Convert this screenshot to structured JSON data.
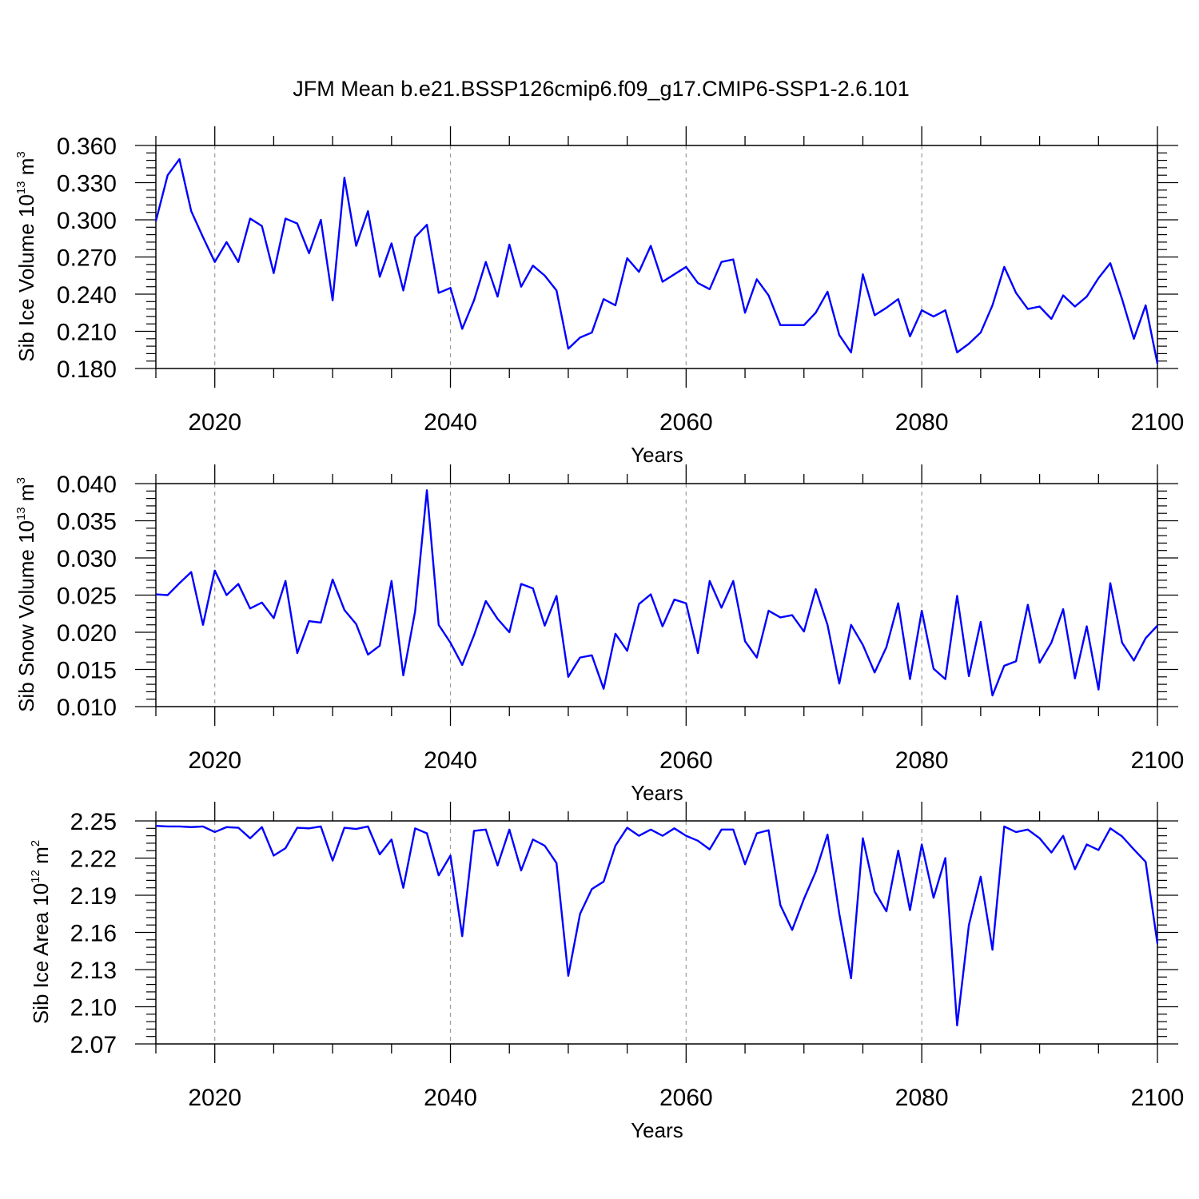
{
  "figure_title": "JFM Mean b.e21.BSSP126cmip6.f09_g17.CMIP6-SSP1-2.6.101",
  "colors": {
    "line": "#0000ff",
    "axis": "#000000",
    "grid": "#999999",
    "background": "#ffffff"
  },
  "chart_data": [
    {
      "type": "line",
      "name": "sib-ice-volume",
      "ylabel_main": "Sib Ice Volume 10",
      "ylabel_exp": "13",
      "ylabel_unit": " m",
      "ylabel_unit_exp": "3",
      "xlabel": "Years",
      "xlim": [
        2015,
        2100
      ],
      "ylim": [
        0.18,
        0.36
      ],
      "yticks": [
        0.18,
        0.21,
        0.24,
        0.27,
        0.3,
        0.33,
        0.36
      ],
      "ytick_labels": [
        "0.180",
        "0.210",
        "0.240",
        "0.270",
        "0.300",
        "0.330",
        "0.360"
      ],
      "xticks": [
        2020,
        2040,
        2060,
        2080,
        2100
      ],
      "xtick_labels": [
        "2020",
        "2040",
        "2060",
        "2080",
        "2100"
      ],
      "grid": "vertical-dashed",
      "x_start": 2015,
      "values": [
        0.299,
        0.336,
        0.349,
        0.307,
        0.286,
        0.266,
        0.282,
        0.266,
        0.301,
        0.295,
        0.257,
        0.301,
        0.297,
        0.273,
        0.3,
        0.235,
        0.334,
        0.279,
        0.307,
        0.254,
        0.281,
        0.243,
        0.286,
        0.296,
        0.241,
        0.245,
        0.212,
        0.235,
        0.266,
        0.238,
        0.28,
        0.246,
        0.263,
        0.255,
        0.243,
        0.196,
        0.205,
        0.209,
        0.236,
        0.231,
        0.269,
        0.258,
        0.279,
        0.25,
        0.256,
        0.262,
        0.249,
        0.244,
        0.266,
        0.268,
        0.225,
        0.252,
        0.239,
        0.215,
        0.215,
        0.215,
        0.225,
        0.242,
        0.207,
        0.193,
        0.256,
        0.223,
        0.229,
        0.236,
        0.206,
        0.227,
        0.222,
        0.227,
        0.193,
        0.2,
        0.209,
        0.231,
        0.262,
        0.241,
        0.228,
        0.23,
        0.22,
        0.239,
        0.23,
        0.238,
        0.253,
        0.265,
        0.236,
        0.204,
        0.231,
        0.184
      ]
    },
    {
      "type": "line",
      "name": "sib-snow-volume",
      "ylabel_main": "Sib Snow Volume 10",
      "ylabel_exp": "13",
      "ylabel_unit": " m",
      "ylabel_unit_exp": "3",
      "xlabel": "Years",
      "xlim": [
        2015,
        2100
      ],
      "ylim": [
        0.01,
        0.04
      ],
      "yticks": [
        0.01,
        0.015,
        0.02,
        0.025,
        0.03,
        0.035,
        0.04
      ],
      "ytick_labels": [
        "0.010",
        "0.015",
        "0.020",
        "0.025",
        "0.030",
        "0.035",
        "0.040"
      ],
      "xticks": [
        2020,
        2040,
        2060,
        2080,
        2100
      ],
      "xtick_labels": [
        "2020",
        "2040",
        "2060",
        "2080",
        "2100"
      ],
      "grid": "vertical-dashed",
      "x_start": 2015,
      "values": [
        0.0251,
        0.025,
        0.0266,
        0.0281,
        0.021,
        0.0283,
        0.025,
        0.0265,
        0.0232,
        0.024,
        0.0219,
        0.0269,
        0.0172,
        0.0215,
        0.0213,
        0.0271,
        0.023,
        0.0211,
        0.017,
        0.0182,
        0.0269,
        0.0142,
        0.0228,
        0.0391,
        0.021,
        0.0186,
        0.0156,
        0.0196,
        0.0242,
        0.0218,
        0.02,
        0.0265,
        0.0259,
        0.0209,
        0.0249,
        0.014,
        0.0166,
        0.0169,
        0.0124,
        0.0198,
        0.0175,
        0.0238,
        0.0251,
        0.0208,
        0.0244,
        0.0239,
        0.0172,
        0.0269,
        0.0233,
        0.0269,
        0.0188,
        0.0166,
        0.0229,
        0.022,
        0.0223,
        0.0201,
        0.0258,
        0.021,
        0.0131,
        0.021,
        0.0183,
        0.0146,
        0.018,
        0.0239,
        0.0137,
        0.0229,
        0.0151,
        0.0137,
        0.0249,
        0.0141,
        0.0214,
        0.0115,
        0.0155,
        0.0161,
        0.0237,
        0.0159,
        0.0186,
        0.0231,
        0.0138,
        0.0208,
        0.0123,
        0.0266,
        0.0186,
        0.0162,
        0.0192,
        0.0209
      ]
    },
    {
      "type": "line",
      "name": "sib-ice-area",
      "ylabel_main": "Sib Ice Area 10",
      "ylabel_exp": "12",
      "ylabel_unit": " m",
      "ylabel_unit_exp": "2",
      "xlabel": "Years",
      "xlim": [
        2015,
        2100
      ],
      "ylim": [
        2.07,
        2.25
      ],
      "yticks": [
        2.07,
        2.1,
        2.13,
        2.16,
        2.19,
        2.22,
        2.25
      ],
      "ytick_labels": [
        "2.07",
        "2.10",
        "2.13",
        "2.16",
        "2.19",
        "2.22",
        "2.25"
      ],
      "xticks": [
        2020,
        2040,
        2060,
        2080,
        2100
      ],
      "xtick_labels": [
        "2020",
        "2040",
        "2060",
        "2080",
        "2100"
      ],
      "grid": "vertical-dashed",
      "x_start": 2015,
      "values": [
        2.246,
        2.2455,
        2.2455,
        2.245,
        2.2455,
        2.241,
        2.245,
        2.2445,
        2.236,
        2.245,
        2.222,
        2.228,
        2.2445,
        2.244,
        2.2455,
        2.218,
        2.2445,
        2.2435,
        2.2455,
        2.223,
        2.235,
        2.196,
        2.244,
        2.24,
        2.206,
        2.222,
        2.157,
        2.242,
        2.243,
        2.214,
        2.243,
        2.21,
        2.235,
        2.23,
        2.216,
        2.125,
        2.175,
        2.195,
        2.201,
        2.23,
        2.2445,
        2.238,
        2.243,
        2.238,
        2.244,
        2.238,
        2.234,
        2.227,
        2.243,
        2.243,
        2.215,
        2.24,
        2.2425,
        2.182,
        2.162,
        2.187,
        2.209,
        2.239,
        2.175,
        2.123,
        2.236,
        2.193,
        2.177,
        2.226,
        2.178,
        2.231,
        2.188,
        2.22,
        2.085,
        2.166,
        2.205,
        2.146,
        2.2455,
        2.241,
        2.243,
        2.236,
        2.2245,
        2.238,
        2.211,
        2.231,
        2.2265,
        2.244,
        2.2375,
        2.227,
        2.217,
        2.151
      ]
    }
  ]
}
